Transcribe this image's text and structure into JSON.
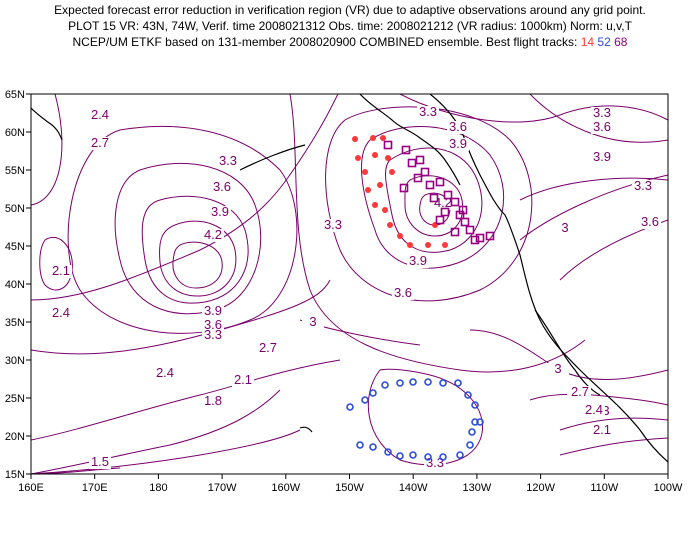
{
  "header": {
    "line1": "Expected forecast error reduction in verification region (VR) due to adaptive observations around any grid point.",
    "line2": "PLOT 15 VR: 43N, 74W, Verif. time 2008021312 Obs. time: 2008021212 (VR radius: 1000km) Norm: u,v,T",
    "line3_prefix": "NCEP/UM ETKF based on 131-member 2008020900 COMBINED ensemble.  Best flight tracks: ",
    "track_a": "14",
    "track_b": "52",
    "track_c": "68"
  },
  "axes": {
    "y_labels": [
      "65N",
      "60N",
      "55N",
      "50N",
      "45N",
      "40N",
      "35N",
      "30N",
      "25N",
      "20N",
      "15N"
    ],
    "x_labels": [
      "160E",
      "170E",
      "180",
      "170W",
      "160W",
      "150W",
      "140W",
      "130W",
      "120W",
      "110W",
      "100W"
    ]
  },
  "colors": {
    "contour": "#7a006b",
    "track_14": "#ff3838",
    "track_52": "#2b4cd9",
    "track_68": "#960081",
    "coast": "#000000"
  },
  "contour_labels": [
    {
      "id": "c1",
      "text": "2.4"
    },
    {
      "id": "c2",
      "text": "2.7"
    },
    {
      "id": "c3",
      "text": "3.3"
    },
    {
      "id": "c4",
      "text": "3.6"
    },
    {
      "id": "c5",
      "text": "3.9"
    },
    {
      "id": "c6",
      "text": "4.2"
    },
    {
      "id": "c7",
      "text": "2.1"
    },
    {
      "id": "c8",
      "text": "2.4"
    },
    {
      "id": "c9",
      "text": "3.9"
    },
    {
      "id": "c10",
      "text": "3.6"
    },
    {
      "id": "c11",
      "text": "3.3"
    },
    {
      "id": "c12",
      "text": "3"
    },
    {
      "id": "c13",
      "text": "2.7"
    },
    {
      "id": "c14",
      "text": "2.4"
    },
    {
      "id": "c15",
      "text": "2.1"
    },
    {
      "id": "c16",
      "text": "1.8"
    },
    {
      "id": "c17",
      "text": "1.5"
    },
    {
      "id": "c18",
      "text": "3.3"
    },
    {
      "id": "c19",
      "text": "3.6"
    },
    {
      "id": "c20",
      "text": "3.9"
    },
    {
      "id": "c21",
      "text": "4.2"
    },
    {
      "id": "c22",
      "text": "3.9"
    },
    {
      "id": "c23",
      "text": "3.6"
    },
    {
      "id": "c24",
      "text": "3.3"
    },
    {
      "id": "c25",
      "text": "3.3"
    },
    {
      "id": "c26",
      "text": "3.6"
    },
    {
      "id": "c27",
      "text": "3.9"
    },
    {
      "id": "c28",
      "text": "3"
    },
    {
      "id": "c29",
      "text": "3"
    },
    {
      "id": "c30",
      "text": "3.3"
    },
    {
      "id": "c31",
      "text": "3.6"
    },
    {
      "id": "c32",
      "text": "2.7"
    },
    {
      "id": "c33",
      "text": "3"
    },
    {
      "id": "c34",
      "text": "2.7"
    },
    {
      "id": "c35",
      "text": "2.4"
    },
    {
      "id": "c36",
      "text": "2.1"
    },
    {
      "id": "c37",
      "text": "3.3"
    }
  ]
}
